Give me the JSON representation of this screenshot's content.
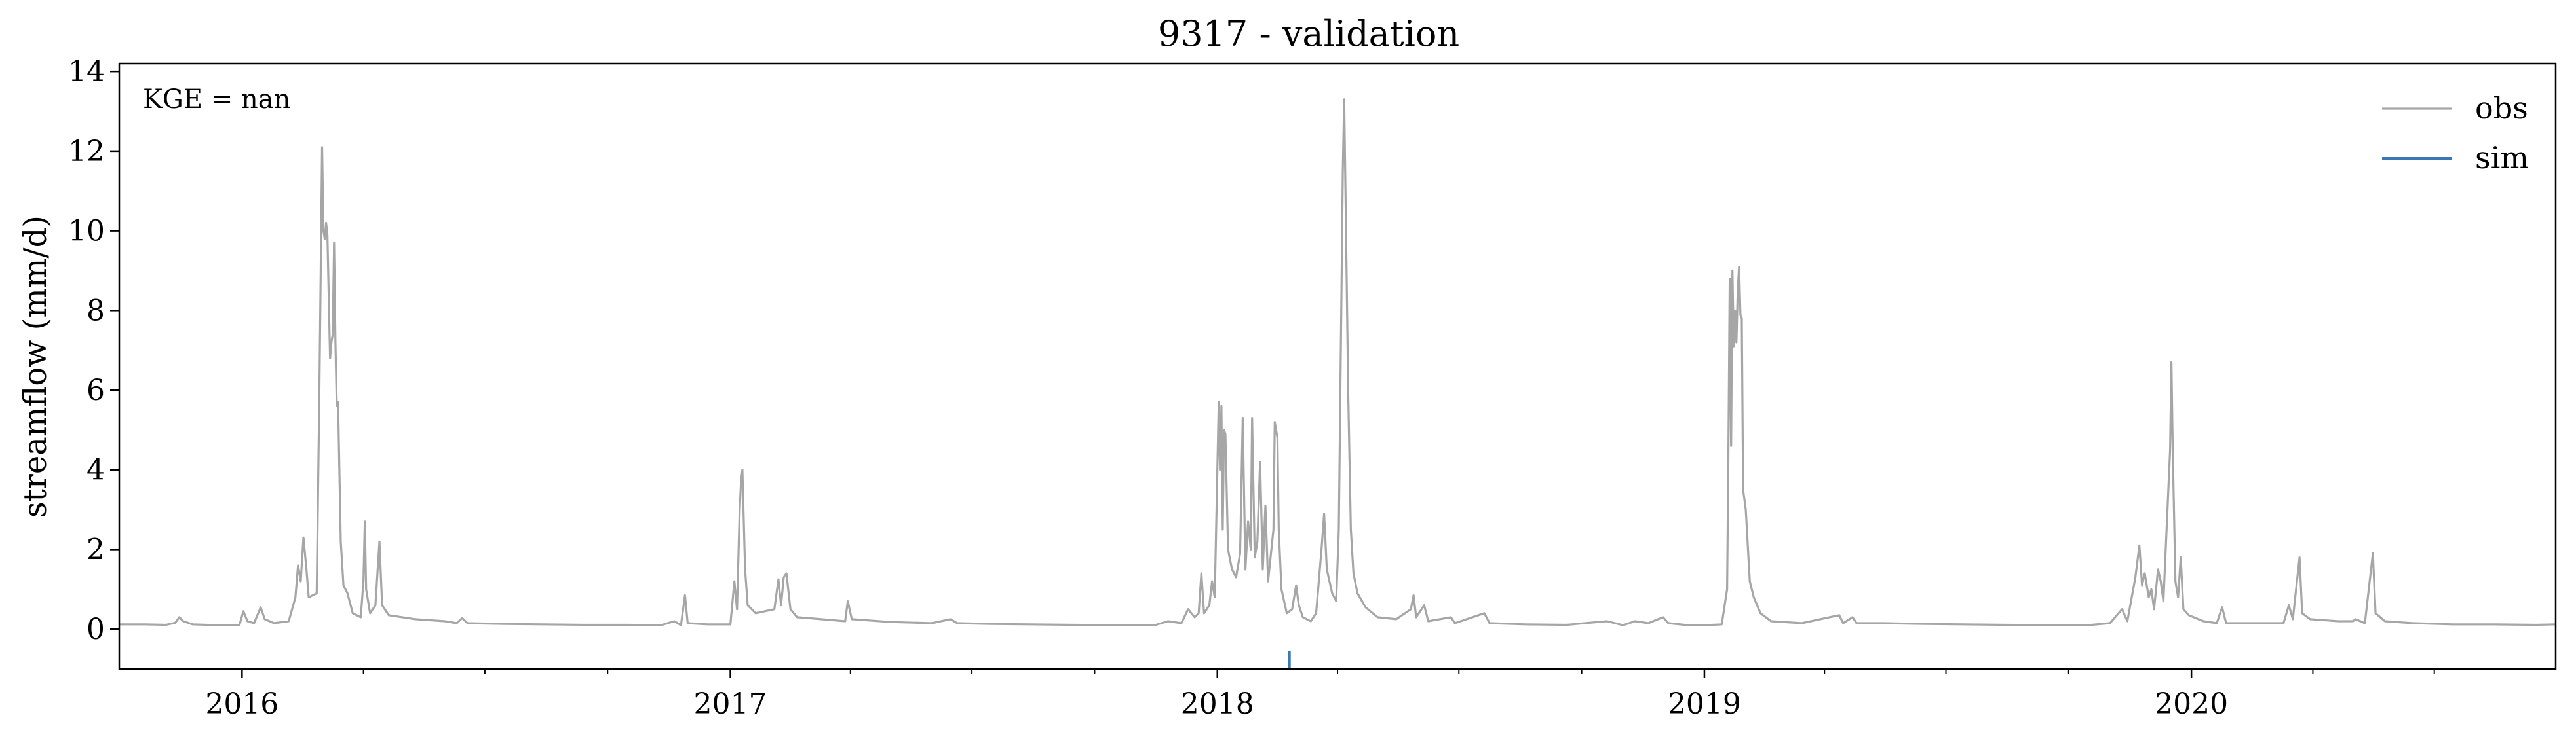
{
  "chart_data": {
    "type": "line",
    "title": "9317 - validation",
    "xlabel": "",
    "ylabel": "streamflow (mm/d)",
    "annotation": "KGE = nan",
    "xlim": [
      "2015-10-01",
      "2020-09-30"
    ],
    "ylim": [
      -1,
      14.2
    ],
    "yticks": [
      0,
      2,
      4,
      6,
      8,
      10,
      12,
      14
    ],
    "xticks": [
      {
        "date": "2016-01-01",
        "label": "2016"
      },
      {
        "date": "2017-01-01",
        "label": "2017"
      },
      {
        "date": "2018-01-01",
        "label": "2018"
      },
      {
        "date": "2019-01-01",
        "label": "2019"
      },
      {
        "date": "2020-01-01",
        "label": "2020"
      }
    ],
    "minor_xticks": [
      "2016-04-01",
      "2016-07-01",
      "2016-10-01",
      "2017-04-01",
      "2017-07-01",
      "2017-10-01",
      "2018-04-01",
      "2018-07-01",
      "2018-10-01",
      "2019-04-01",
      "2019-07-01",
      "2019-10-01",
      "2020-04-01",
      "2020-07-01"
    ],
    "grid": false,
    "legend_position": "top-right",
    "series": [
      {
        "name": "obs",
        "color": "#a6a6a6",
        "points": [
          [
            "2015-10-01",
            0.12
          ],
          [
            "2015-10-20",
            0.12
          ],
          [
            "2015-11-05",
            0.11
          ],
          [
            "2015-11-12",
            0.16
          ],
          [
            "2015-11-15",
            0.3
          ],
          [
            "2015-11-18",
            0.2
          ],
          [
            "2015-11-25",
            0.12
          ],
          [
            "2015-12-15",
            0.1
          ],
          [
            "2015-12-30",
            0.1
          ],
          [
            "2016-01-02",
            0.45
          ],
          [
            "2016-01-05",
            0.2
          ],
          [
            "2016-01-10",
            0.15
          ],
          [
            "2016-01-15",
            0.55
          ],
          [
            "2016-01-18",
            0.25
          ],
          [
            "2016-01-25",
            0.15
          ],
          [
            "2016-02-05",
            0.2
          ],
          [
            "2016-02-10",
            0.8
          ],
          [
            "2016-02-12",
            1.6
          ],
          [
            "2016-02-14",
            1.2
          ],
          [
            "2016-02-16",
            2.3
          ],
          [
            "2016-02-18",
            1.6
          ],
          [
            "2016-02-20",
            0.8
          ],
          [
            "2016-02-26",
            0.9
          ],
          [
            "2016-02-28",
            6.0
          ],
          [
            "2016-03-01",
            12.1
          ],
          [
            "2016-03-02",
            10.0
          ],
          [
            "2016-03-03",
            9.8
          ],
          [
            "2016-03-04",
            10.2
          ],
          [
            "2016-03-05",
            9.9
          ],
          [
            "2016-03-07",
            6.8
          ],
          [
            "2016-03-08",
            7.2
          ],
          [
            "2016-03-09",
            7.4
          ],
          [
            "2016-03-10",
            9.7
          ],
          [
            "2016-03-11",
            7.2
          ],
          [
            "2016-03-12",
            5.6
          ],
          [
            "2016-03-13",
            5.7
          ],
          [
            "2016-03-15",
            2.2
          ],
          [
            "2016-03-17",
            1.1
          ],
          [
            "2016-03-20",
            0.9
          ],
          [
            "2016-03-24",
            0.4
          ],
          [
            "2016-03-30",
            0.3
          ],
          [
            "2016-04-01",
            1.2
          ],
          [
            "2016-04-02",
            2.7
          ],
          [
            "2016-04-03",
            1.0
          ],
          [
            "2016-04-06",
            0.4
          ],
          [
            "2016-04-10",
            0.6
          ],
          [
            "2016-04-13",
            2.2
          ],
          [
            "2016-04-15",
            0.6
          ],
          [
            "2016-04-20",
            0.35
          ],
          [
            "2016-05-10",
            0.25
          ],
          [
            "2016-06-01",
            0.2
          ],
          [
            "2016-06-10",
            0.15
          ],
          [
            "2016-06-14",
            0.28
          ],
          [
            "2016-06-18",
            0.15
          ],
          [
            "2016-07-15",
            0.13
          ],
          [
            "2016-08-15",
            0.12
          ],
          [
            "2016-09-15",
            0.11
          ],
          [
            "2016-10-15",
            0.11
          ],
          [
            "2016-11-10",
            0.1
          ],
          [
            "2016-11-20",
            0.2
          ],
          [
            "2016-11-25",
            0.1
          ],
          [
            "2016-11-28",
            0.85
          ],
          [
            "2016-11-30",
            0.15
          ],
          [
            "2016-12-15",
            0.12
          ],
          [
            "2017-01-01",
            0.12
          ],
          [
            "2017-01-04",
            1.2
          ],
          [
            "2017-01-06",
            0.5
          ],
          [
            "2017-01-08",
            3.0
          ],
          [
            "2017-01-09",
            3.7
          ],
          [
            "2017-01-10",
            4.0
          ],
          [
            "2017-01-12",
            1.5
          ],
          [
            "2017-01-14",
            0.6
          ],
          [
            "2017-01-20",
            0.4
          ],
          [
            "2017-02-03",
            0.5
          ],
          [
            "2017-02-06",
            1.25
          ],
          [
            "2017-02-08",
            0.6
          ],
          [
            "2017-02-10",
            1.3
          ],
          [
            "2017-02-12",
            1.4
          ],
          [
            "2017-02-15",
            0.5
          ],
          [
            "2017-02-20",
            0.3
          ],
          [
            "2017-03-10",
            0.25
          ],
          [
            "2017-03-28",
            0.2
          ],
          [
            "2017-03-30",
            0.7
          ],
          [
            "2017-04-02",
            0.25
          ],
          [
            "2017-05-01",
            0.18
          ],
          [
            "2017-06-01",
            0.15
          ],
          [
            "2017-06-15",
            0.25
          ],
          [
            "2017-06-20",
            0.15
          ],
          [
            "2017-07-15",
            0.13
          ],
          [
            "2017-08-15",
            0.12
          ],
          [
            "2017-09-15",
            0.11
          ],
          [
            "2017-10-15",
            0.1
          ],
          [
            "2017-11-15",
            0.1
          ],
          [
            "2017-11-25",
            0.2
          ],
          [
            "2017-12-05",
            0.15
          ],
          [
            "2017-12-10",
            0.5
          ],
          [
            "2017-12-15",
            0.3
          ],
          [
            "2017-12-18",
            0.4
          ],
          [
            "2017-12-20",
            1.4
          ],
          [
            "2017-12-22",
            0.4
          ],
          [
            "2017-12-26",
            0.6
          ],
          [
            "2017-12-28",
            1.2
          ],
          [
            "2017-12-30",
            0.8
          ],
          [
            "2018-01-02",
            5.7
          ],
          [
            "2018-01-03",
            4.0
          ],
          [
            "2018-01-04",
            5.6
          ],
          [
            "2018-01-05",
            2.5
          ],
          [
            "2018-01-06",
            5.0
          ],
          [
            "2018-01-07",
            4.9
          ],
          [
            "2018-01-09",
            2.0
          ],
          [
            "2018-01-12",
            1.5
          ],
          [
            "2018-01-15",
            1.3
          ],
          [
            "2018-01-18",
            1.9
          ],
          [
            "2018-01-20",
            5.3
          ],
          [
            "2018-01-22",
            1.5
          ],
          [
            "2018-01-24",
            2.7
          ],
          [
            "2018-01-26",
            2.0
          ],
          [
            "2018-01-27",
            5.3
          ],
          [
            "2018-01-29",
            1.8
          ],
          [
            "2018-01-31",
            2.2
          ],
          [
            "2018-02-02",
            4.2
          ],
          [
            "2018-02-04",
            1.5
          ],
          [
            "2018-02-06",
            3.1
          ],
          [
            "2018-02-08",
            1.2
          ],
          [
            "2018-02-12",
            2.5
          ],
          [
            "2018-02-13",
            5.2
          ],
          [
            "2018-02-15",
            4.8
          ],
          [
            "2018-02-16",
            2.5
          ],
          [
            "2018-02-18",
            1.0
          ],
          [
            "2018-02-22",
            0.4
          ],
          [
            "2018-02-26",
            0.5
          ],
          [
            "2018-03-01",
            1.1
          ],
          [
            "2018-03-03",
            0.6
          ],
          [
            "2018-03-06",
            0.3
          ],
          [
            "2018-03-12",
            0.2
          ],
          [
            "2018-03-16",
            0.4
          ],
          [
            "2018-03-20",
            2.0
          ],
          [
            "2018-03-22",
            2.9
          ],
          [
            "2018-03-24",
            1.5
          ],
          [
            "2018-03-28",
            0.9
          ],
          [
            "2018-03-31",
            0.7
          ],
          [
            "2018-04-02",
            2.5
          ],
          [
            "2018-04-04",
            8.5
          ],
          [
            "2018-04-05",
            11.5
          ],
          [
            "2018-04-06",
            13.3
          ],
          [
            "2018-04-07",
            11.0
          ],
          [
            "2018-04-09",
            6.0
          ],
          [
            "2018-04-11",
            2.5
          ],
          [
            "2018-04-13",
            1.4
          ],
          [
            "2018-04-16",
            0.9
          ],
          [
            "2018-04-22",
            0.55
          ],
          [
            "2018-05-01",
            0.3
          ],
          [
            "2018-05-15",
            0.25
          ],
          [
            "2018-05-26",
            0.5
          ],
          [
            "2018-05-28",
            0.85
          ],
          [
            "2018-05-30",
            0.3
          ],
          [
            "2018-06-05",
            0.6
          ],
          [
            "2018-06-08",
            0.2
          ],
          [
            "2018-06-25",
            0.3
          ],
          [
            "2018-06-28",
            0.15
          ],
          [
            "2018-07-20",
            0.4
          ],
          [
            "2018-07-24",
            0.15
          ],
          [
            "2018-08-20",
            0.12
          ],
          [
            "2018-09-20",
            0.11
          ],
          [
            "2018-10-20",
            0.2
          ],
          [
            "2018-11-01",
            0.1
          ],
          [
            "2018-11-10",
            0.2
          ],
          [
            "2018-11-20",
            0.15
          ],
          [
            "2018-12-01",
            0.3
          ],
          [
            "2018-12-05",
            0.15
          ],
          [
            "2018-12-20",
            0.1
          ],
          [
            "2019-01-01",
            0.1
          ],
          [
            "2019-01-14",
            0.12
          ],
          [
            "2019-01-18",
            1.0
          ],
          [
            "2019-01-19",
            4.5
          ],
          [
            "2019-01-20",
            8.8
          ],
          [
            "2019-01-21",
            4.6
          ],
          [
            "2019-01-22",
            9.0
          ],
          [
            "2019-01-23",
            7.1
          ],
          [
            "2019-01-24",
            8.0
          ],
          [
            "2019-01-25",
            7.2
          ],
          [
            "2019-01-26",
            8.5
          ],
          [
            "2019-01-27",
            9.1
          ],
          [
            "2019-01-28",
            7.9
          ],
          [
            "2019-01-29",
            7.8
          ],
          [
            "2019-01-30",
            3.5
          ],
          [
            "2019-02-01",
            3.0
          ],
          [
            "2019-02-04",
            1.2
          ],
          [
            "2019-02-07",
            0.8
          ],
          [
            "2019-02-12",
            0.4
          ],
          [
            "2019-02-20",
            0.2
          ],
          [
            "2019-03-15",
            0.15
          ],
          [
            "2019-04-12",
            0.35
          ],
          [
            "2019-04-15",
            0.15
          ],
          [
            "2019-04-22",
            0.3
          ],
          [
            "2019-04-25",
            0.15
          ],
          [
            "2019-05-15",
            0.15
          ],
          [
            "2019-06-15",
            0.13
          ],
          [
            "2019-07-15",
            0.12
          ],
          [
            "2019-08-15",
            0.11
          ],
          [
            "2019-09-15",
            0.1
          ],
          [
            "2019-10-15",
            0.1
          ],
          [
            "2019-11-01",
            0.15
          ],
          [
            "2019-11-10",
            0.5
          ],
          [
            "2019-11-14",
            0.2
          ],
          [
            "2019-11-20",
            1.3
          ],
          [
            "2019-11-23",
            2.1
          ],
          [
            "2019-11-25",
            1.1
          ],
          [
            "2019-11-27",
            1.4
          ],
          [
            "2019-11-30",
            0.8
          ],
          [
            "2019-12-02",
            1.0
          ],
          [
            "2019-12-04",
            0.5
          ],
          [
            "2019-12-07",
            1.5
          ],
          [
            "2019-12-09",
            1.2
          ],
          [
            "2019-12-11",
            0.7
          ],
          [
            "2019-12-16",
            4.5
          ],
          [
            "2019-12-17",
            6.7
          ],
          [
            "2019-12-18",
            4.5
          ],
          [
            "2019-12-20",
            1.2
          ],
          [
            "2019-12-22",
            0.8
          ],
          [
            "2019-12-24",
            1.8
          ],
          [
            "2019-12-26",
            0.5
          ],
          [
            "2019-12-30",
            0.35
          ],
          [
            "2020-01-10",
            0.2
          ],
          [
            "2020-01-20",
            0.15
          ],
          [
            "2020-01-24",
            0.55
          ],
          [
            "2020-01-27",
            0.15
          ],
          [
            "2020-02-20",
            0.15
          ],
          [
            "2020-03-10",
            0.15
          ],
          [
            "2020-03-14",
            0.6
          ],
          [
            "2020-03-17",
            0.25
          ],
          [
            "2020-03-22",
            1.8
          ],
          [
            "2020-03-24",
            0.4
          ],
          [
            "2020-03-30",
            0.25
          ],
          [
            "2020-04-20",
            0.2
          ],
          [
            "2020-05-01",
            0.2
          ],
          [
            "2020-05-03",
            0.25
          ],
          [
            "2020-05-10",
            0.15
          ],
          [
            "2020-05-16",
            1.9
          ],
          [
            "2020-05-18",
            0.4
          ],
          [
            "2020-05-25",
            0.2
          ],
          [
            "2020-06-15",
            0.15
          ],
          [
            "2020-07-15",
            0.12
          ],
          [
            "2020-08-15",
            0.12
          ],
          [
            "2020-09-15",
            0.11
          ],
          [
            "2020-09-30",
            0.12
          ]
        ]
      },
      {
        "name": "sim",
        "color": "#3a78b5",
        "points": [
          [
            "2018-02-24",
            -0.55
          ],
          [
            "2018-02-24",
            -0.98
          ]
        ]
      }
    ]
  }
}
